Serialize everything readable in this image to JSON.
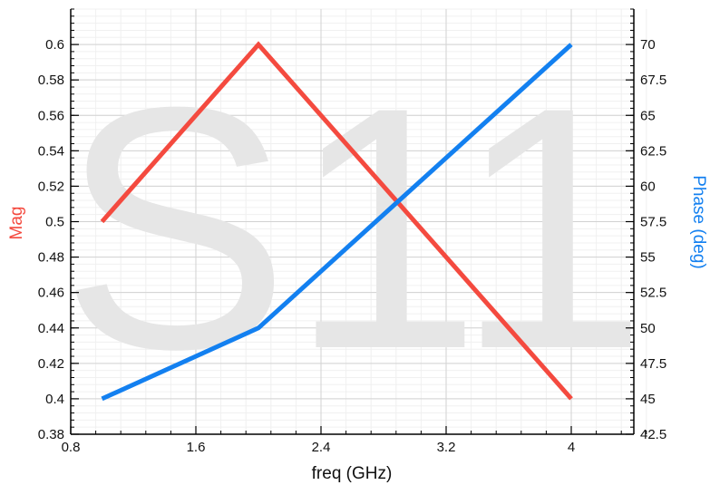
{
  "chart_data": {
    "type": "line",
    "watermark": "S11",
    "xlabel": "freq (GHz)",
    "ylabel_left": "Mag",
    "ylabel_right": "Phase (deg)",
    "xlim": [
      0.8,
      4.4
    ],
    "ylim_left": [
      0.38,
      0.62
    ],
    "ylim_right": [
      42.5,
      72.5
    ],
    "x_ticks": [
      "0.8",
      "1.6",
      "2.4",
      "3.2",
      "4"
    ],
    "y_left_ticks": [
      "0.38",
      "0.4",
      "0.42",
      "0.44",
      "0.46",
      "0.48",
      "0.5",
      "0.52",
      "0.54",
      "0.56",
      "0.58",
      "0.6"
    ],
    "y_right_ticks": [
      "42.5",
      "45",
      "47.5",
      "50",
      "52.5",
      "55",
      "57.5",
      "60",
      "62.5",
      "65",
      "67.5",
      "70"
    ],
    "grid": true,
    "colors": {
      "mag": "#f44a3f",
      "phase": "#1380f0"
    },
    "series": [
      {
        "axis": "left",
        "x": [
          1.0,
          2.0,
          4.0
        ],
        "values": [
          0.5,
          0.6,
          0.4
        ]
      },
      {
        "axis": "right",
        "x": [
          1.0,
          2.0,
          4.0
        ],
        "values": [
          45,
          50,
          70
        ]
      }
    ]
  }
}
